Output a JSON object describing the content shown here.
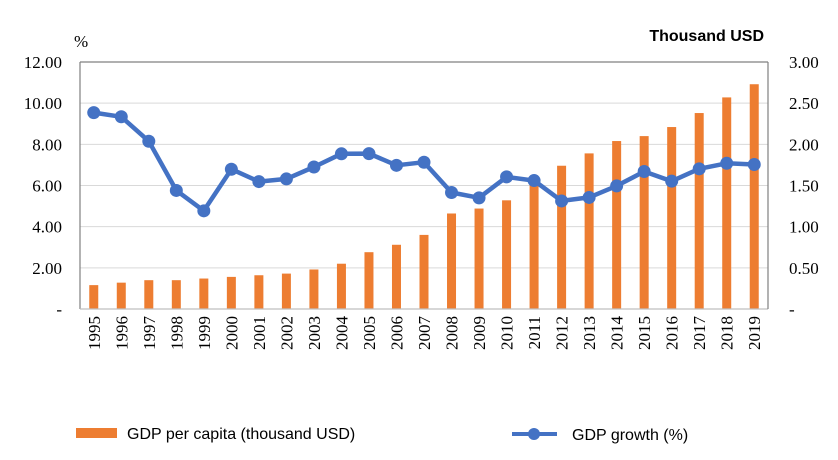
{
  "chart_data": {
    "type": "bar+line",
    "title": "",
    "categories": [
      "1995",
      "1996",
      "1997",
      "1998",
      "1999",
      "2000",
      "2001",
      "2002",
      "2003",
      "2004",
      "2005",
      "2006",
      "2007",
      "2008",
      "2009",
      "2010",
      "2011",
      "2012",
      "2013",
      "2014",
      "2015",
      "2016",
      "2017",
      "2018",
      "2019"
    ],
    "series": [
      {
        "name": "GDP per capita (thousand USD)",
        "type": "bar",
        "axis": "right",
        "color": "#ED7D31",
        "values": [
          0.29,
          0.32,
          0.35,
          0.35,
          0.37,
          0.39,
          0.41,
          0.43,
          0.48,
          0.55,
          0.69,
          0.78,
          0.9,
          1.16,
          1.22,
          1.32,
          1.53,
          1.74,
          1.89,
          2.04,
          2.1,
          2.21,
          2.38,
          2.57,
          2.73
        ]
      },
      {
        "name": "GDP growth (%)",
        "type": "line",
        "axis": "left",
        "color": "#4472C4",
        "values": [
          9.54,
          9.34,
          8.15,
          5.76,
          4.77,
          6.79,
          6.19,
          6.32,
          6.9,
          7.54,
          7.55,
          6.98,
          7.13,
          5.66,
          5.4,
          6.42,
          6.24,
          5.25,
          5.42,
          5.98,
          6.68,
          6.21,
          6.81,
          7.08,
          7.02
        ]
      }
    ],
    "left_axis": {
      "label": "%",
      "ylim": [
        0,
        12
      ],
      "ticks": [
        "-",
        "2.00",
        "4.00",
        "6.00",
        "8.00",
        "10.00",
        "12.00"
      ]
    },
    "right_axis": {
      "label": "Thousand USD",
      "ylim": [
        0,
        3
      ],
      "ticks": [
        "-",
        "0.50",
        "1.00",
        "1.50",
        "2.00",
        "2.50",
        "3.00"
      ]
    },
    "grid": true,
    "legend": {
      "position": "bottom",
      "entries": [
        "GDP per capita (thousand USD)",
        "GDP growth (%)"
      ]
    }
  }
}
